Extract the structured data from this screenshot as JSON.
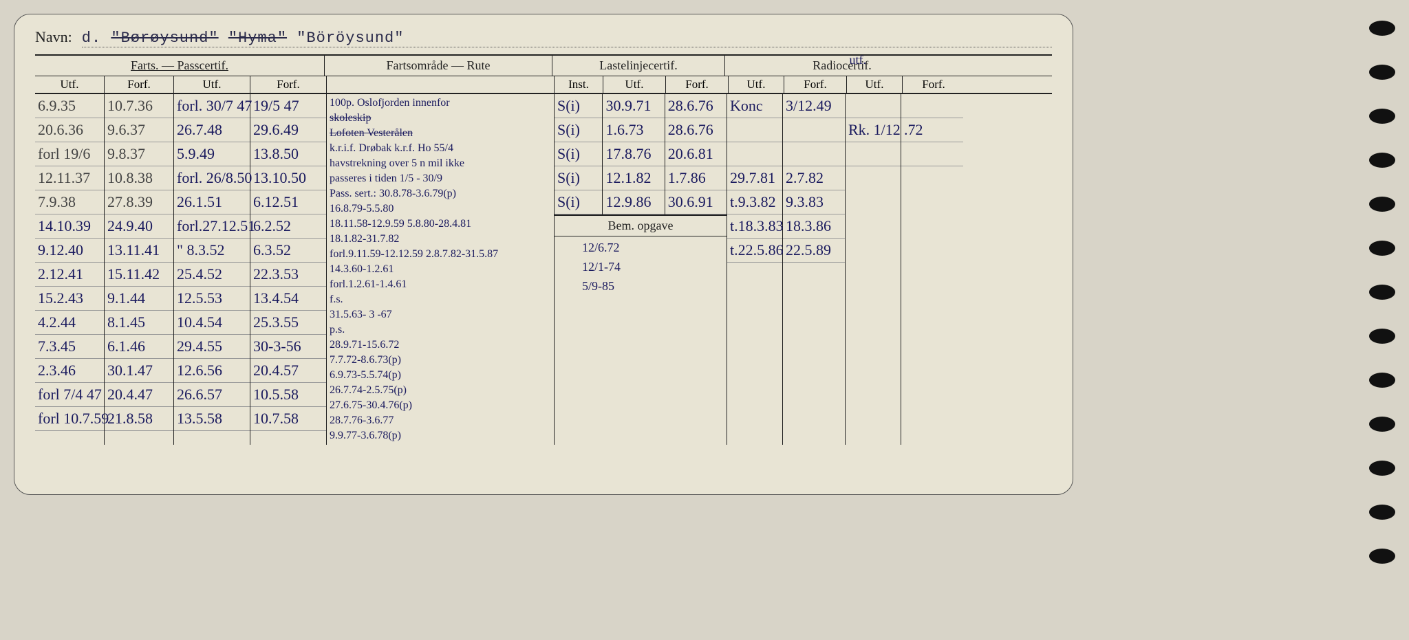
{
  "navn_label": "Navn:",
  "navn_prefix": "d.",
  "navn_struck1": "\"Børøysund\"",
  "navn_struck2": "\"Hyma\"",
  "navn_current": "\"Böröysund\"",
  "sections": {
    "farts": "Farts. — Passcertif.",
    "fartsomrade": "Fartsområde — Rute",
    "laste": "Lastelinjecertif.",
    "radio": "Radiocertif."
  },
  "sub": {
    "utf": "Utf.",
    "forf": "Forf.",
    "inst": "Inst."
  },
  "bem_opgave": "Bem. opgave",
  "radio_annotation": "utf.",
  "col_widths": {
    "c1": 100,
    "c2": 100,
    "c3": 110,
    "c4": 110,
    "farts": 330,
    "inst": 70,
    "l_utf": 90,
    "l_forf": 90,
    "r_utf": 80,
    "r_forf": 90,
    "r_utf2": 80,
    "r_forf2": 90
  },
  "farts_c1": [
    "6.9.35",
    "20.6.36",
    "forl 19/6",
    "12.11.37",
    "7.9.38",
    "14.10.39",
    "9.12.40",
    "2.12.41",
    "15.2.43",
    "4.2.44",
    "7.3.45",
    "2.3.46",
    "forl 7/4 47",
    "forl 10.7.59"
  ],
  "farts_c2": [
    "10.7.36",
    "9.6.37",
    "9.8.37",
    "10.8.38",
    "27.8.39",
    "24.9.40",
    "13.11.41",
    "15.11.42",
    "9.1.44",
    "8.1.45",
    "6.1.46",
    "30.1.47",
    "20.4.47",
    "21.8.58"
  ],
  "farts_c3": [
    "forl. 30/7 47",
    "26.7.48",
    "5.9.49",
    "forl. 26/8.50",
    "26.1.51",
    "forl.27.12.51",
    "\" 8.3.52",
    "25.4.52",
    "12.5.53",
    "10.4.54",
    "29.4.55",
    "12.6.56",
    "26.6.57",
    "13.5.58"
  ],
  "farts_c4": [
    "19/5 47",
    "29.6.49",
    "13.8.50",
    "13.10.50",
    "6.12.51",
    "6.2.52",
    "6.3.52",
    "22.3.53",
    "13.4.54",
    "25.3.55",
    "30-3-56",
    "20.4.57",
    "10.5.58",
    "10.7.58"
  ],
  "fartsomrade_lines": [
    "100p. Oslofjorden innenfor",
    "skoleskip (struck)",
    "Lofoten Vesterålen (struck)",
    "k.r.i.f. Drøbak k.r.f. Ho 55/4",
    "havstrekning over 5 n mil ikke",
    "passeres i tiden 1/5 - 30/9",
    "Pass. sert.:        30.8.78-3.6.79(p)",
    "                    16.8.79-5.5.80",
    "18.11.58-12.9.59    5.8.80-28.4.81",
    "                    18.1.82-31.7.82",
    "forl.9.11.59-12.12.59  2.8.7.82-31.5.87",
    "14.3.60-1.2.61",
    "forl.1.2.61-1.4.61",
    "f.s.",
    "31.5.63- 3 -67",
    "p.s.",
    "28.9.71-15.6.72",
    "7.7.72-8.6.73(p)",
    "6.9.73-5.5.74(p)",
    "26.7.74-2.5.75(p)",
    "27.6.75-30.4.76(p)",
    "28.7.76-3.6.77",
    "9.9.77-3.6.78(p)"
  ],
  "laste_inst": [
    "S(i)",
    "S(i)",
    "S(i)",
    "S(i)",
    "S(i)"
  ],
  "laste_utf": [
    "30.9.71",
    "1.6.73",
    "17.8.76",
    "12.1.82",
    "12.9.86"
  ],
  "laste_forf": [
    "28.6.76",
    "28.6.76",
    "20.6.81",
    "1.7.86",
    "30.6.91"
  ],
  "radio_utf": [
    "Konc",
    "",
    "",
    "29.7.81",
    "t.9.3.82",
    "t.18.3.83",
    "t.22.5.86"
  ],
  "radio_forf": [
    "3/12.49",
    "",
    "",
    "2.7.82",
    "9.3.83",
    "18.3.86",
    "22.5.89"
  ],
  "radio_utf2": [
    "",
    "Rk. 1/12",
    ""
  ],
  "radio_forf2": [
    "",
    ".72",
    ""
  ],
  "bem_lines": [
    "12/6.72",
    "12/1-74",
    "5/9-85"
  ],
  "colors": {
    "bg": "#d8d4c8",
    "card": "#e8e4d4",
    "ink_print": "#222222",
    "ink_hand_blue": "#1a1a5e",
    "ink_hand_gray": "#444444",
    "rule": "#999999"
  }
}
